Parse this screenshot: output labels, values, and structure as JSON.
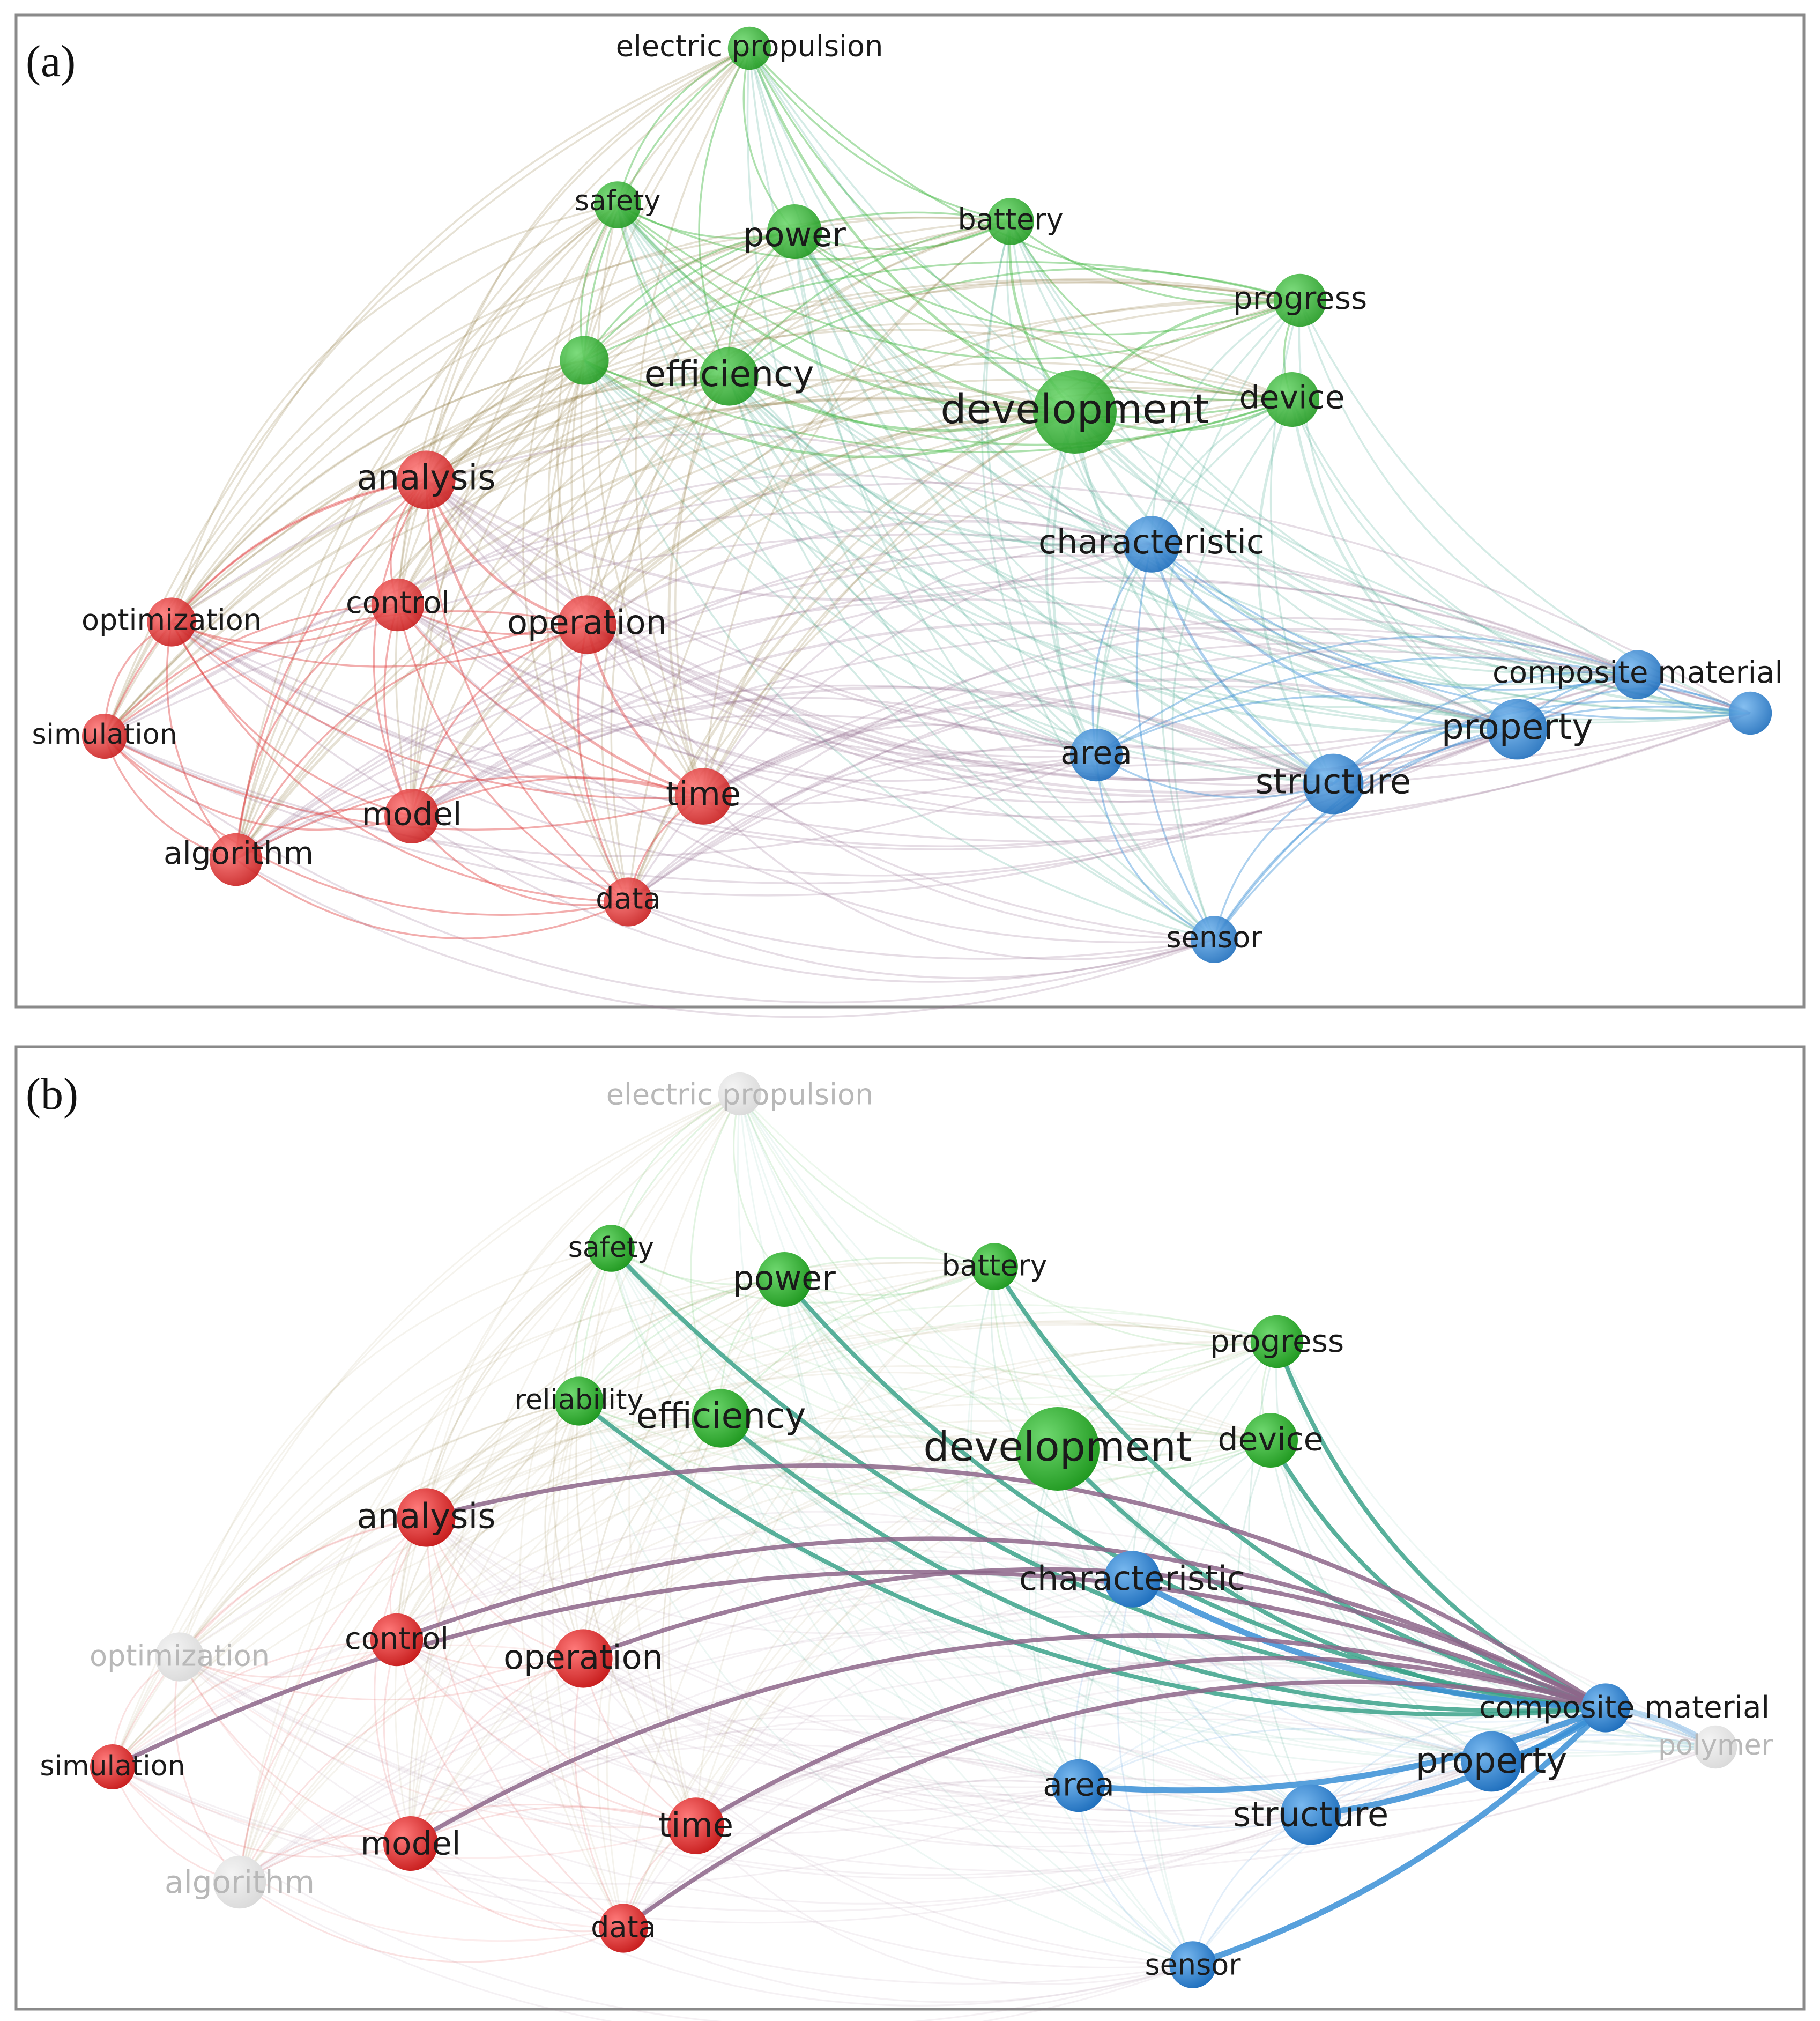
{
  "panels": [
    {
      "id": "a",
      "letter": "(a)",
      "nodes": [
        {
          "id": "electric-propulsion",
          "label": "electric propulsion",
          "cluster": "green",
          "weight": 0.45,
          "faded": false
        },
        {
          "id": "safety",
          "label": "safety",
          "cluster": "green",
          "weight": 0.55,
          "faded": false
        },
        {
          "id": "power",
          "label": "power",
          "cluster": "green",
          "weight": 0.75,
          "faded": false
        },
        {
          "id": "battery",
          "label": "battery",
          "cluster": "green",
          "weight": 0.55,
          "faded": false
        },
        {
          "id": "progress",
          "label": "progress",
          "cluster": "green",
          "weight": 0.7,
          "faded": false
        },
        {
          "id": "reliability",
          "label": "",
          "cluster": "green",
          "weight": 0.6,
          "faded": false
        },
        {
          "id": "efficiency",
          "label": "efficiency",
          "cluster": "green",
          "weight": 0.85,
          "faded": false
        },
        {
          "id": "development",
          "label": "development",
          "cluster": "green",
          "weight": 1.5,
          "faded": false
        },
        {
          "id": "device",
          "label": "device",
          "cluster": "green",
          "weight": 0.75,
          "faded": false
        },
        {
          "id": "analysis",
          "label": "analysis",
          "cluster": "red",
          "weight": 0.85,
          "faded": false
        },
        {
          "id": "characteristic",
          "label": "characteristic",
          "cluster": "blue",
          "weight": 0.8,
          "faded": false
        },
        {
          "id": "optimization",
          "label": "optimization",
          "cluster": "red",
          "weight": 0.6,
          "faded": false
        },
        {
          "id": "control",
          "label": "control",
          "cluster": "red",
          "weight": 0.7,
          "faded": false
        },
        {
          "id": "operation",
          "label": "operation",
          "cluster": "red",
          "weight": 0.85,
          "faded": false
        },
        {
          "id": "composite-material",
          "label": "composite material",
          "cluster": "blue",
          "weight": 0.6,
          "faded": false
        },
        {
          "id": "polymer",
          "label": "",
          "cluster": "blue",
          "weight": 0.45,
          "faded": false
        },
        {
          "id": "simulation",
          "label": "simulation",
          "cluster": "red",
          "weight": 0.5,
          "faded": false
        },
        {
          "id": "property",
          "label": "property",
          "cluster": "blue",
          "weight": 0.9,
          "faded": false
        },
        {
          "id": "area",
          "label": "area",
          "cluster": "blue",
          "weight": 0.7,
          "faded": false
        },
        {
          "id": "structure",
          "label": "structure",
          "cluster": "blue",
          "weight": 0.9,
          "faded": false
        },
        {
          "id": "time",
          "label": "time",
          "cluster": "red",
          "weight": 0.8,
          "faded": false
        },
        {
          "id": "model",
          "label": "model",
          "cluster": "red",
          "weight": 0.75,
          "faded": false
        },
        {
          "id": "algorithm",
          "label": "algorithm",
          "cluster": "red",
          "weight": 0.7,
          "faded": false
        },
        {
          "id": "data",
          "label": "data",
          "cluster": "red",
          "weight": 0.6,
          "faded": false
        },
        {
          "id": "sensor",
          "label": "sensor",
          "cluster": "blue",
          "weight": 0.55,
          "faded": false
        }
      ]
    },
    {
      "id": "b",
      "letter": "(b)",
      "focus": "composite-material",
      "nodes": [
        {
          "id": "electric-propulsion",
          "label": "electric propulsion",
          "cluster": "green",
          "weight": 0.45,
          "faded": true
        },
        {
          "id": "safety",
          "label": "safety",
          "cluster": "green",
          "weight": 0.55,
          "faded": false
        },
        {
          "id": "power",
          "label": "power",
          "cluster": "green",
          "weight": 0.75,
          "faded": false
        },
        {
          "id": "battery",
          "label": "battery",
          "cluster": "green",
          "weight": 0.55,
          "faded": false
        },
        {
          "id": "progress",
          "label": "progress",
          "cluster": "green",
          "weight": 0.7,
          "faded": false
        },
        {
          "id": "reliability",
          "label": "reliability",
          "cluster": "green",
          "weight": 0.6,
          "faded": false
        },
        {
          "id": "efficiency",
          "label": "efficiency",
          "cluster": "green",
          "weight": 0.85,
          "faded": false
        },
        {
          "id": "development",
          "label": "development",
          "cluster": "green",
          "weight": 1.5,
          "faded": false
        },
        {
          "id": "device",
          "label": "device",
          "cluster": "green",
          "weight": 0.75,
          "faded": false
        },
        {
          "id": "analysis",
          "label": "analysis",
          "cluster": "red",
          "weight": 0.85,
          "faded": false
        },
        {
          "id": "characteristic",
          "label": "characteristic",
          "cluster": "blue",
          "weight": 0.8,
          "faded": false
        },
        {
          "id": "optimization",
          "label": "optimization",
          "cluster": "red",
          "weight": 0.6,
          "faded": true
        },
        {
          "id": "control",
          "label": "control",
          "cluster": "red",
          "weight": 0.7,
          "faded": false
        },
        {
          "id": "operation",
          "label": "operation",
          "cluster": "red",
          "weight": 0.85,
          "faded": false
        },
        {
          "id": "composite-material",
          "label": "composite material",
          "cluster": "blue",
          "weight": 0.6,
          "faded": false
        },
        {
          "id": "polymer",
          "label": "polymer",
          "cluster": "blue",
          "weight": 0.45,
          "faded": true
        },
        {
          "id": "simulation",
          "label": "simulation",
          "cluster": "red",
          "weight": 0.5,
          "faded": false
        },
        {
          "id": "property",
          "label": "property",
          "cluster": "blue",
          "weight": 0.9,
          "faded": false
        },
        {
          "id": "area",
          "label": "area",
          "cluster": "blue",
          "weight": 0.7,
          "faded": false
        },
        {
          "id": "structure",
          "label": "structure",
          "cluster": "blue",
          "weight": 0.9,
          "faded": false
        },
        {
          "id": "time",
          "label": "time",
          "cluster": "red",
          "weight": 0.8,
          "faded": false
        },
        {
          "id": "model",
          "label": "model",
          "cluster": "red",
          "weight": 0.75,
          "faded": false
        },
        {
          "id": "algorithm",
          "label": "algorithm",
          "cluster": "red",
          "weight": 0.7,
          "faded": true
        },
        {
          "id": "data",
          "label": "data",
          "cluster": "red",
          "weight": 0.6,
          "faded": false
        },
        {
          "id": "sensor",
          "label": "sensor",
          "cluster": "blue",
          "weight": 0.55,
          "faded": false
        }
      ]
    }
  ],
  "highlight_links": [
    "safety",
    "power",
    "battery",
    "progress",
    "reliability",
    "efficiency",
    "development",
    "device",
    "analysis",
    "characteristic",
    "control",
    "operation",
    "simulation",
    "property",
    "area",
    "structure",
    "time",
    "model",
    "data",
    "sensor",
    "polymer"
  ],
  "colors": {
    "green": "#3cb43c",
    "red": "#e03c3c",
    "blue": "#3a8fd6",
    "faded_label": "#b8b8b8",
    "frame": "#8a8a8a"
  }
}
